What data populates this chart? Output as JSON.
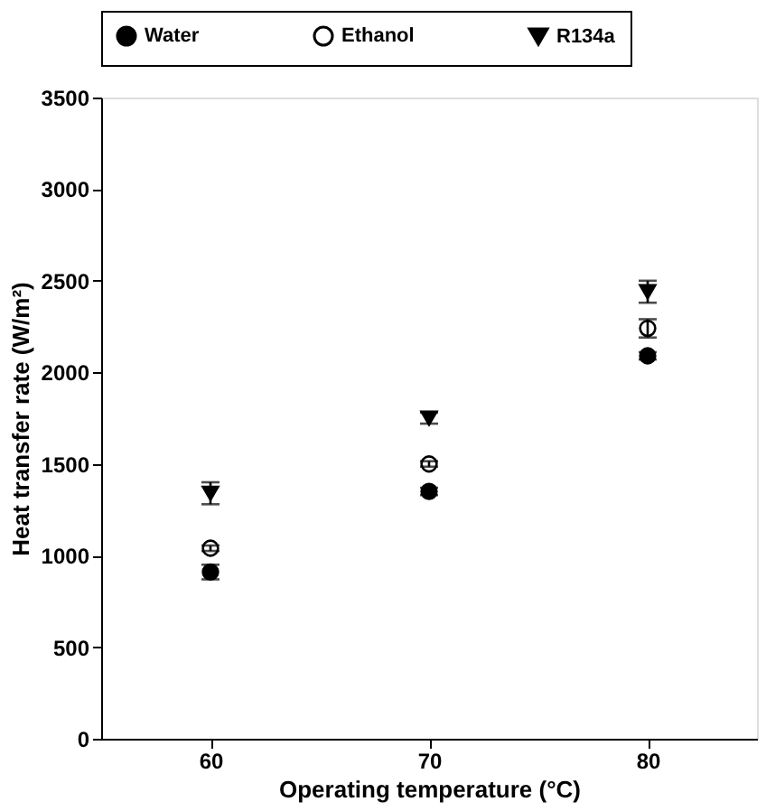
{
  "chart_data": {
    "type": "scatter",
    "xlabel": "Operating temperature (°C)",
    "ylabel": "Heat transfer rate (W/m²)",
    "x": [
      60,
      70,
      80
    ],
    "xlim": [
      55,
      85
    ],
    "xticks": [
      60,
      70,
      80
    ],
    "ylim": [
      0,
      3500
    ],
    "yticks": [
      0,
      500,
      1000,
      1500,
      2000,
      2500,
      3000,
      3500
    ],
    "grid": false,
    "legend": "top",
    "series": [
      {
        "name": "Water",
        "color": "#000000",
        "marker": "circle",
        "values": [
          910,
          1350,
          2090
        ],
        "errors": [
          40,
          20,
          20
        ]
      },
      {
        "name": "Ethanol",
        "color": "#ffffff",
        "marker": "circle",
        "values": [
          1040,
          1500,
          2240
        ],
        "errors": [
          15,
          15,
          50
        ]
      },
      {
        "name": "R134a",
        "color": "#000000",
        "marker": "triangle",
        "values": [
          1340,
          1750,
          2440
        ],
        "errors": [
          60,
          30,
          60
        ]
      }
    ]
  }
}
